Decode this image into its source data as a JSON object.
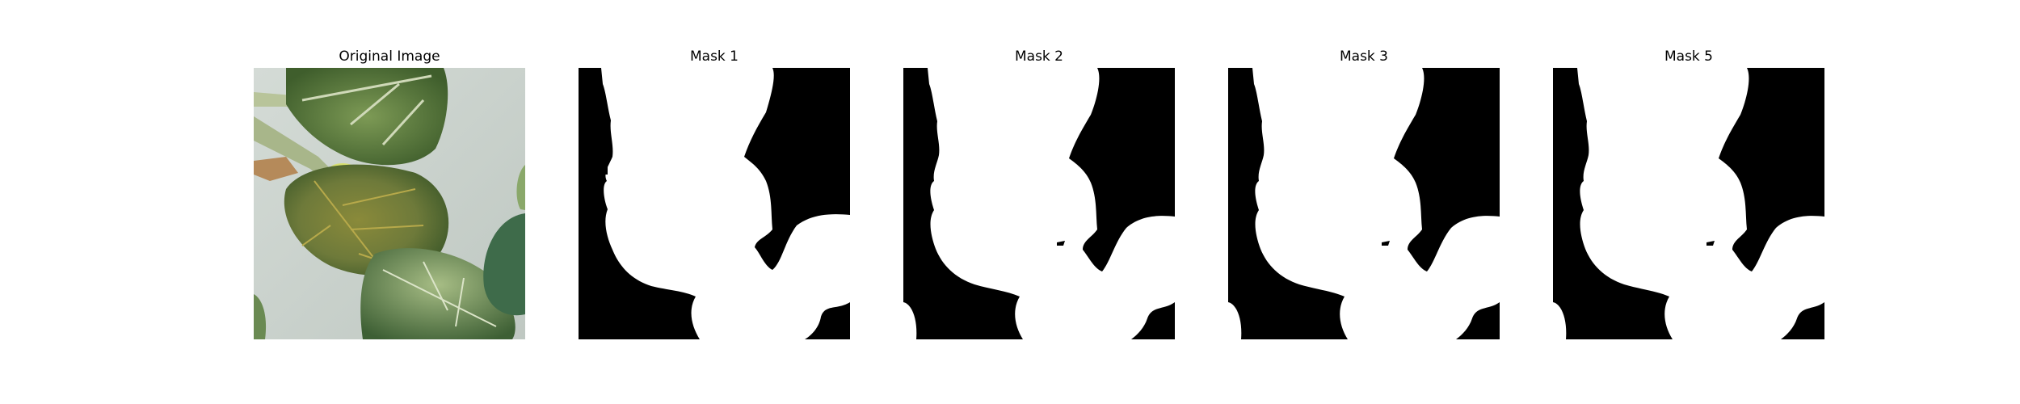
{
  "figure": {
    "panels": [
      {
        "kind": "photo",
        "title": "Original Image"
      },
      {
        "kind": "mask",
        "title": "Mask 1"
      },
      {
        "kind": "mask",
        "title": "Mask 2"
      },
      {
        "kind": "mask",
        "title": "Mask 3"
      },
      {
        "kind": "mask",
        "title": "Mask 5"
      }
    ],
    "colors": {
      "mask_background": "#000000",
      "mask_foreground": "#ffffff",
      "photo_wall": "#c9d1cc",
      "leaf_dark": "#4a6b36",
      "leaf_mid": "#6b8a4a",
      "leaf_light": "#9bb07a",
      "leaf_yellow": "#c9d160"
    }
  }
}
